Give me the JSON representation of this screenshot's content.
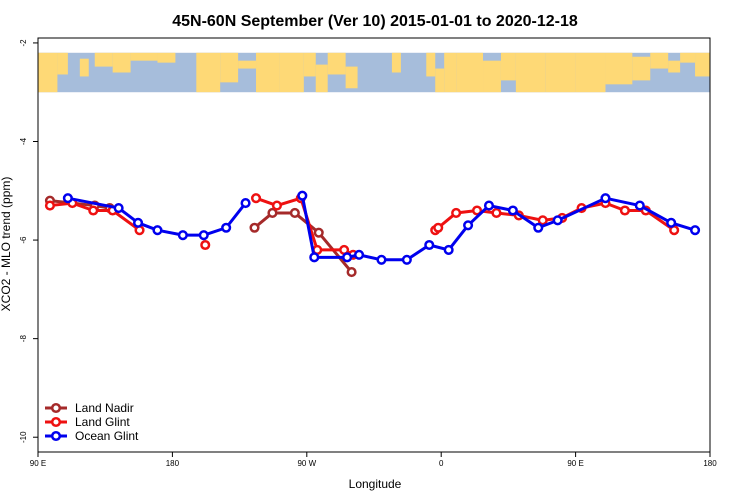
{
  "chart_data": {
    "type": "line",
    "title": "45N-60N September (Ver 10)   2015-01-01 to 2020-12-18",
    "xlabel": "Longitude",
    "ylabel": "XCO2 - MLO trend (ppm)",
    "xlim": [
      90,
      540
    ],
    "ylim": [
      -10.3,
      -1.9
    ],
    "xticks": [
      {
        "value": 90,
        "label": "90 E"
      },
      {
        "value": 180,
        "label": "180"
      },
      {
        "value": 270,
        "label": "90 W"
      },
      {
        "value": 360,
        "label": "0"
      },
      {
        "value": 450,
        "label": "90 E"
      },
      {
        "value": 540,
        "label": "180"
      }
    ],
    "yticks": [
      {
        "value": -2,
        "label": "-2"
      },
      {
        "value": -4,
        "label": "-4"
      },
      {
        "value": -6,
        "label": "-6"
      },
      {
        "value": -8,
        "label": "-8"
      },
      {
        "value": -10,
        "label": "-10"
      }
    ],
    "map_strip": {
      "y_from": -2.2,
      "y_to": -3.0,
      "ocean_color": "#a6bddb",
      "land_color": "#fed976"
    },
    "legend_position": "bottom-left",
    "series": [
      {
        "name": "Land Nadir",
        "color": "#a52a2a",
        "segments": [
          [
            [
              98,
              -5.2
            ],
            [
              128,
              -5.3
            ],
            [
              138,
              -5.35
            ]
          ],
          [
            [
              235,
              -5.75
            ],
            [
              247,
              -5.45
            ],
            [
              262,
              -5.45
            ],
            [
              278,
              -5.85
            ],
            [
              300,
              -6.65
            ]
          ]
        ]
      },
      {
        "name": "Land Glint",
        "color": "#ee1111",
        "segments": [
          [
            [
              98,
              -5.3
            ],
            [
              113,
              -5.25
            ],
            [
              127,
              -5.4
            ],
            [
              140,
              -5.4
            ],
            [
              158,
              -5.8
            ]
          ],
          [
            [
              202,
              -6.1
            ]
          ],
          [
            [
              236,
              -5.15
            ],
            [
              250,
              -5.3
            ],
            [
              266,
              -5.15
            ],
            [
              277,
              -6.2
            ],
            [
              295,
              -6.2
            ],
            [
              301,
              -6.3
            ]
          ],
          [
            [
              356,
              -5.8
            ],
            [
              358,
              -5.75
            ],
            [
              370,
              -5.45
            ],
            [
              384,
              -5.4
            ],
            [
              397,
              -5.45
            ],
            [
              412,
              -5.5
            ],
            [
              428,
              -5.6
            ],
            [
              441,
              -5.55
            ],
            [
              454,
              -5.35
            ],
            [
              470,
              -5.25
            ],
            [
              483,
              -5.4
            ],
            [
              497,
              -5.4
            ],
            [
              516,
              -5.8
            ]
          ]
        ]
      },
      {
        "name": "Ocean Glint",
        "color": "#0000ee",
        "segments": [
          [
            [
              110,
              -5.15
            ],
            [
              144,
              -5.35
            ],
            [
              157,
              -5.65
            ],
            [
              170,
              -5.8
            ],
            [
              187,
              -5.9
            ],
            [
              201,
              -5.9
            ],
            [
              216,
              -5.75
            ],
            [
              229,
              -5.25
            ]
          ],
          [
            [
              267,
              -5.1
            ],
            [
              275,
              -6.35
            ],
            [
              297,
              -6.35
            ],
            [
              305,
              -6.3
            ],
            [
              320,
              -6.4
            ],
            [
              337,
              -6.4
            ],
            [
              352,
              -6.1
            ],
            [
              365,
              -6.2
            ],
            [
              378,
              -5.7
            ],
            [
              392,
              -5.3
            ],
            [
              408,
              -5.4
            ],
            [
              425,
              -5.75
            ],
            [
              438,
              -5.6
            ],
            [
              470,
              -5.15
            ],
            [
              493,
              -5.3
            ],
            [
              514,
              -5.65
            ],
            [
              530,
              -5.8
            ]
          ]
        ]
      }
    ]
  }
}
